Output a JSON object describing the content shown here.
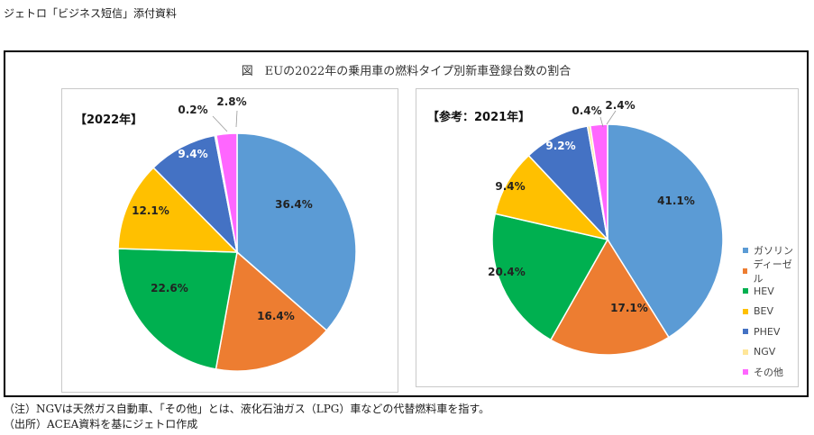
{
  "header": "ジェトロ「ビジネス短信」添付資料",
  "title": "図　EUの2022年の乗用車の燃料タイプ別新車登録台数の割合",
  "notes": {
    "note": "（注）NGVは天然ガス自動車、「その他」とは、液化石油ガス（LPG）車などの代替燃料車を指す。",
    "source": "（出所）ACEA資料を基にジェトロ作成"
  },
  "colors": {
    "ガソリン": "#5b9bd5",
    "ディーゼル": "#ed7d31",
    "HEV": "#00b050",
    "BEV": "#ffc000",
    "PHEV": "#4472c4",
    "NGV": "#ffe699",
    "その他": "#ff66ff"
  },
  "chart_data": [
    {
      "type": "pie",
      "title": "【2022年】",
      "categories": [
        "ガソリン",
        "ディーゼル",
        "HEV",
        "BEV",
        "PHEV",
        "NGV",
        "その他"
      ],
      "values": [
        36.4,
        16.4,
        22.6,
        12.1,
        9.4,
        0.2,
        2.8
      ],
      "labels": [
        "36.4%",
        "16.4%",
        "22.6%",
        "12.1%",
        "9.4%",
        "0.2%",
        "2.8%"
      ]
    },
    {
      "type": "pie",
      "title": "【参考：2021年】",
      "categories": [
        "ガソリン",
        "ディーゼル",
        "HEV",
        "BEV",
        "PHEV",
        "NGV",
        "その他"
      ],
      "values": [
        41.1,
        17.1,
        20.4,
        9.4,
        9.2,
        0.4,
        2.4
      ],
      "labels": [
        "41.1%",
        "17.1%",
        "20.4%",
        "9.4%",
        "9.2%",
        "0.4%",
        "2.4%"
      ],
      "legend": [
        "ガソリン",
        "ディーゼル",
        "HEV",
        "BEV",
        "PHEV",
        "NGV",
        "その他"
      ]
    }
  ]
}
